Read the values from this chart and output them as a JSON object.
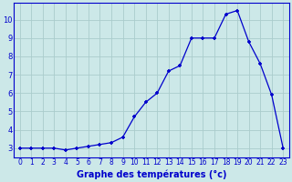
{
  "hours": [
    0,
    1,
    2,
    3,
    4,
    5,
    6,
    7,
    8,
    9,
    10,
    11,
    12,
    13,
    14,
    15,
    16,
    17,
    18,
    19,
    20,
    21,
    22,
    23
  ],
  "temperatures": [
    3.0,
    3.0,
    3.0,
    3.0,
    2.9,
    3.0,
    3.1,
    3.2,
    3.3,
    3.6,
    4.7,
    5.5,
    6.0,
    7.2,
    7.5,
    9.0,
    9.0,
    9.0,
    10.3,
    10.5,
    8.8,
    7.6,
    5.9,
    3.0
  ],
  "xlabel": "Graphe des températures (°c)",
  "line_color": "#0000cc",
  "bg_color": "#cce8e8",
  "grid_color": "#aacccc",
  "ylim": [
    2.5,
    10.9
  ],
  "xlim": [
    -0.5,
    23.5
  ],
  "yticks": [
    3,
    4,
    5,
    6,
    7,
    8,
    9,
    10
  ],
  "xtick_labels": [
    "0",
    "1",
    "2",
    "3",
    "4",
    "5",
    "6",
    "7",
    "8",
    "9",
    "10",
    "11",
    "12",
    "13",
    "14",
    "15",
    "16",
    "17",
    "18",
    "19",
    "20",
    "21",
    "22",
    "23"
  ],
  "marker": "+",
  "marker_size": 3.5,
  "marker_edge_width": 1.2,
  "line_width": 0.9,
  "xlabel_fontsize": 7,
  "tick_fontsize": 5.5
}
